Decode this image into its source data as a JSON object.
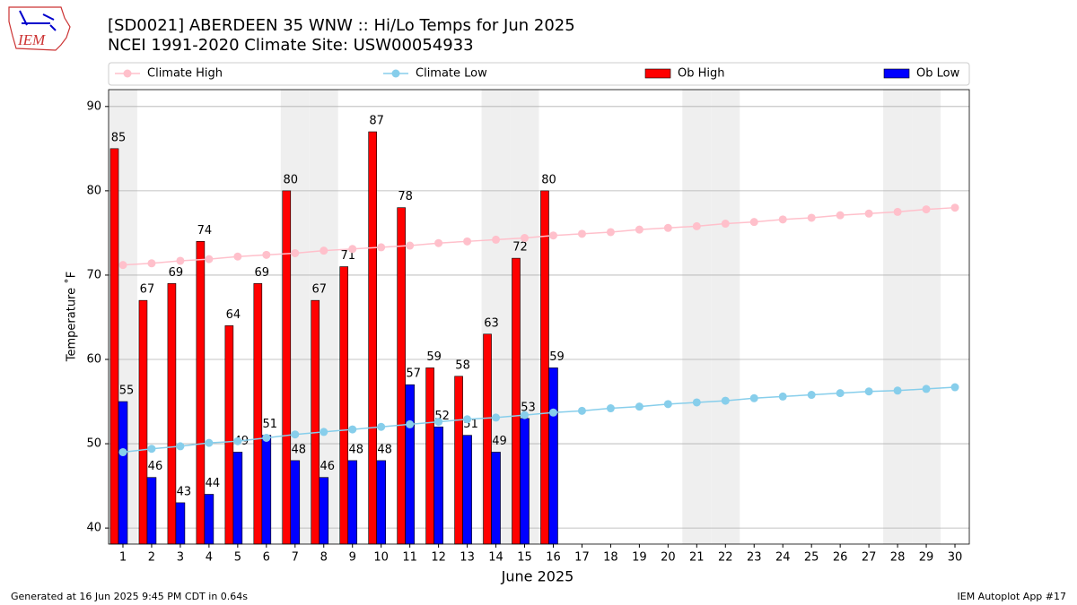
{
  "chart_data": {
    "type": "bar",
    "title": "[SD0021] ABERDEEN 35 WNW :: Hi/Lo Temps for Jun 2025",
    "subtitle": "NCEI 1991-2020 Climate Site: USW00054933",
    "logo_text": "IEM",
    "y_label": "Temperature ˚F",
    "x_label": "June 2025",
    "footer_left": "Generated at 16 Jun 2025 9:45 PM CDT in 0.64s",
    "footer_right": "IEM Autoplot App #17",
    "x": [
      1,
      2,
      3,
      4,
      5,
      6,
      7,
      8,
      9,
      10,
      11,
      12,
      13,
      14,
      15,
      16,
      17,
      18,
      19,
      20,
      21,
      22,
      23,
      24,
      25,
      26,
      27,
      28,
      29,
      30
    ],
    "xlim": [
      0.5,
      30.5
    ],
    "ylim": [
      38.1,
      92.0
    ],
    "yticks": [
      40,
      50,
      60,
      70,
      80,
      90
    ],
    "grid": true,
    "series": [
      {
        "name": "Climate High",
        "kind": "line",
        "color": "#ffc0cb",
        "values": [
          71.2,
          71.4,
          71.7,
          71.9,
          72.2,
          72.4,
          72.6,
          72.9,
          73.1,
          73.3,
          73.5,
          73.8,
          74.0,
          74.2,
          74.4,
          74.7,
          74.9,
          75.1,
          75.4,
          75.6,
          75.8,
          76.1,
          76.3,
          76.6,
          76.8,
          77.1,
          77.3,
          77.5,
          77.8,
          78.0
        ]
      },
      {
        "name": "Climate Low",
        "kind": "line",
        "color": "#87ceeb",
        "values": [
          49.0,
          49.4,
          49.7,
          50.1,
          50.3,
          50.7,
          51.1,
          51.4,
          51.7,
          52.0,
          52.3,
          52.6,
          52.9,
          53.1,
          53.4,
          53.7,
          53.9,
          54.2,
          54.4,
          54.7,
          54.9,
          55.1,
          55.4,
          55.6,
          55.8,
          56.0,
          56.2,
          56.3,
          56.5,
          56.7
        ]
      },
      {
        "name": "Ob High",
        "kind": "bar",
        "color": "#ff0000",
        "values": [
          85,
          67,
          69,
          74,
          64,
          69,
          80,
          67,
          71,
          87,
          78,
          59,
          58,
          63,
          72,
          80,
          null,
          null,
          null,
          null,
          null,
          null,
          null,
          null,
          null,
          null,
          null,
          null,
          null,
          null
        ]
      },
      {
        "name": "Ob Low",
        "kind": "bar",
        "color": "#0000ff",
        "values": [
          55,
          46,
          43,
          44,
          49,
          51,
          48,
          46,
          48,
          48,
          57,
          52,
          51,
          49,
          53,
          59,
          null,
          null,
          null,
          null,
          null,
          null,
          null,
          null,
          null,
          null,
          null,
          null,
          null,
          null
        ]
      }
    ]
  }
}
